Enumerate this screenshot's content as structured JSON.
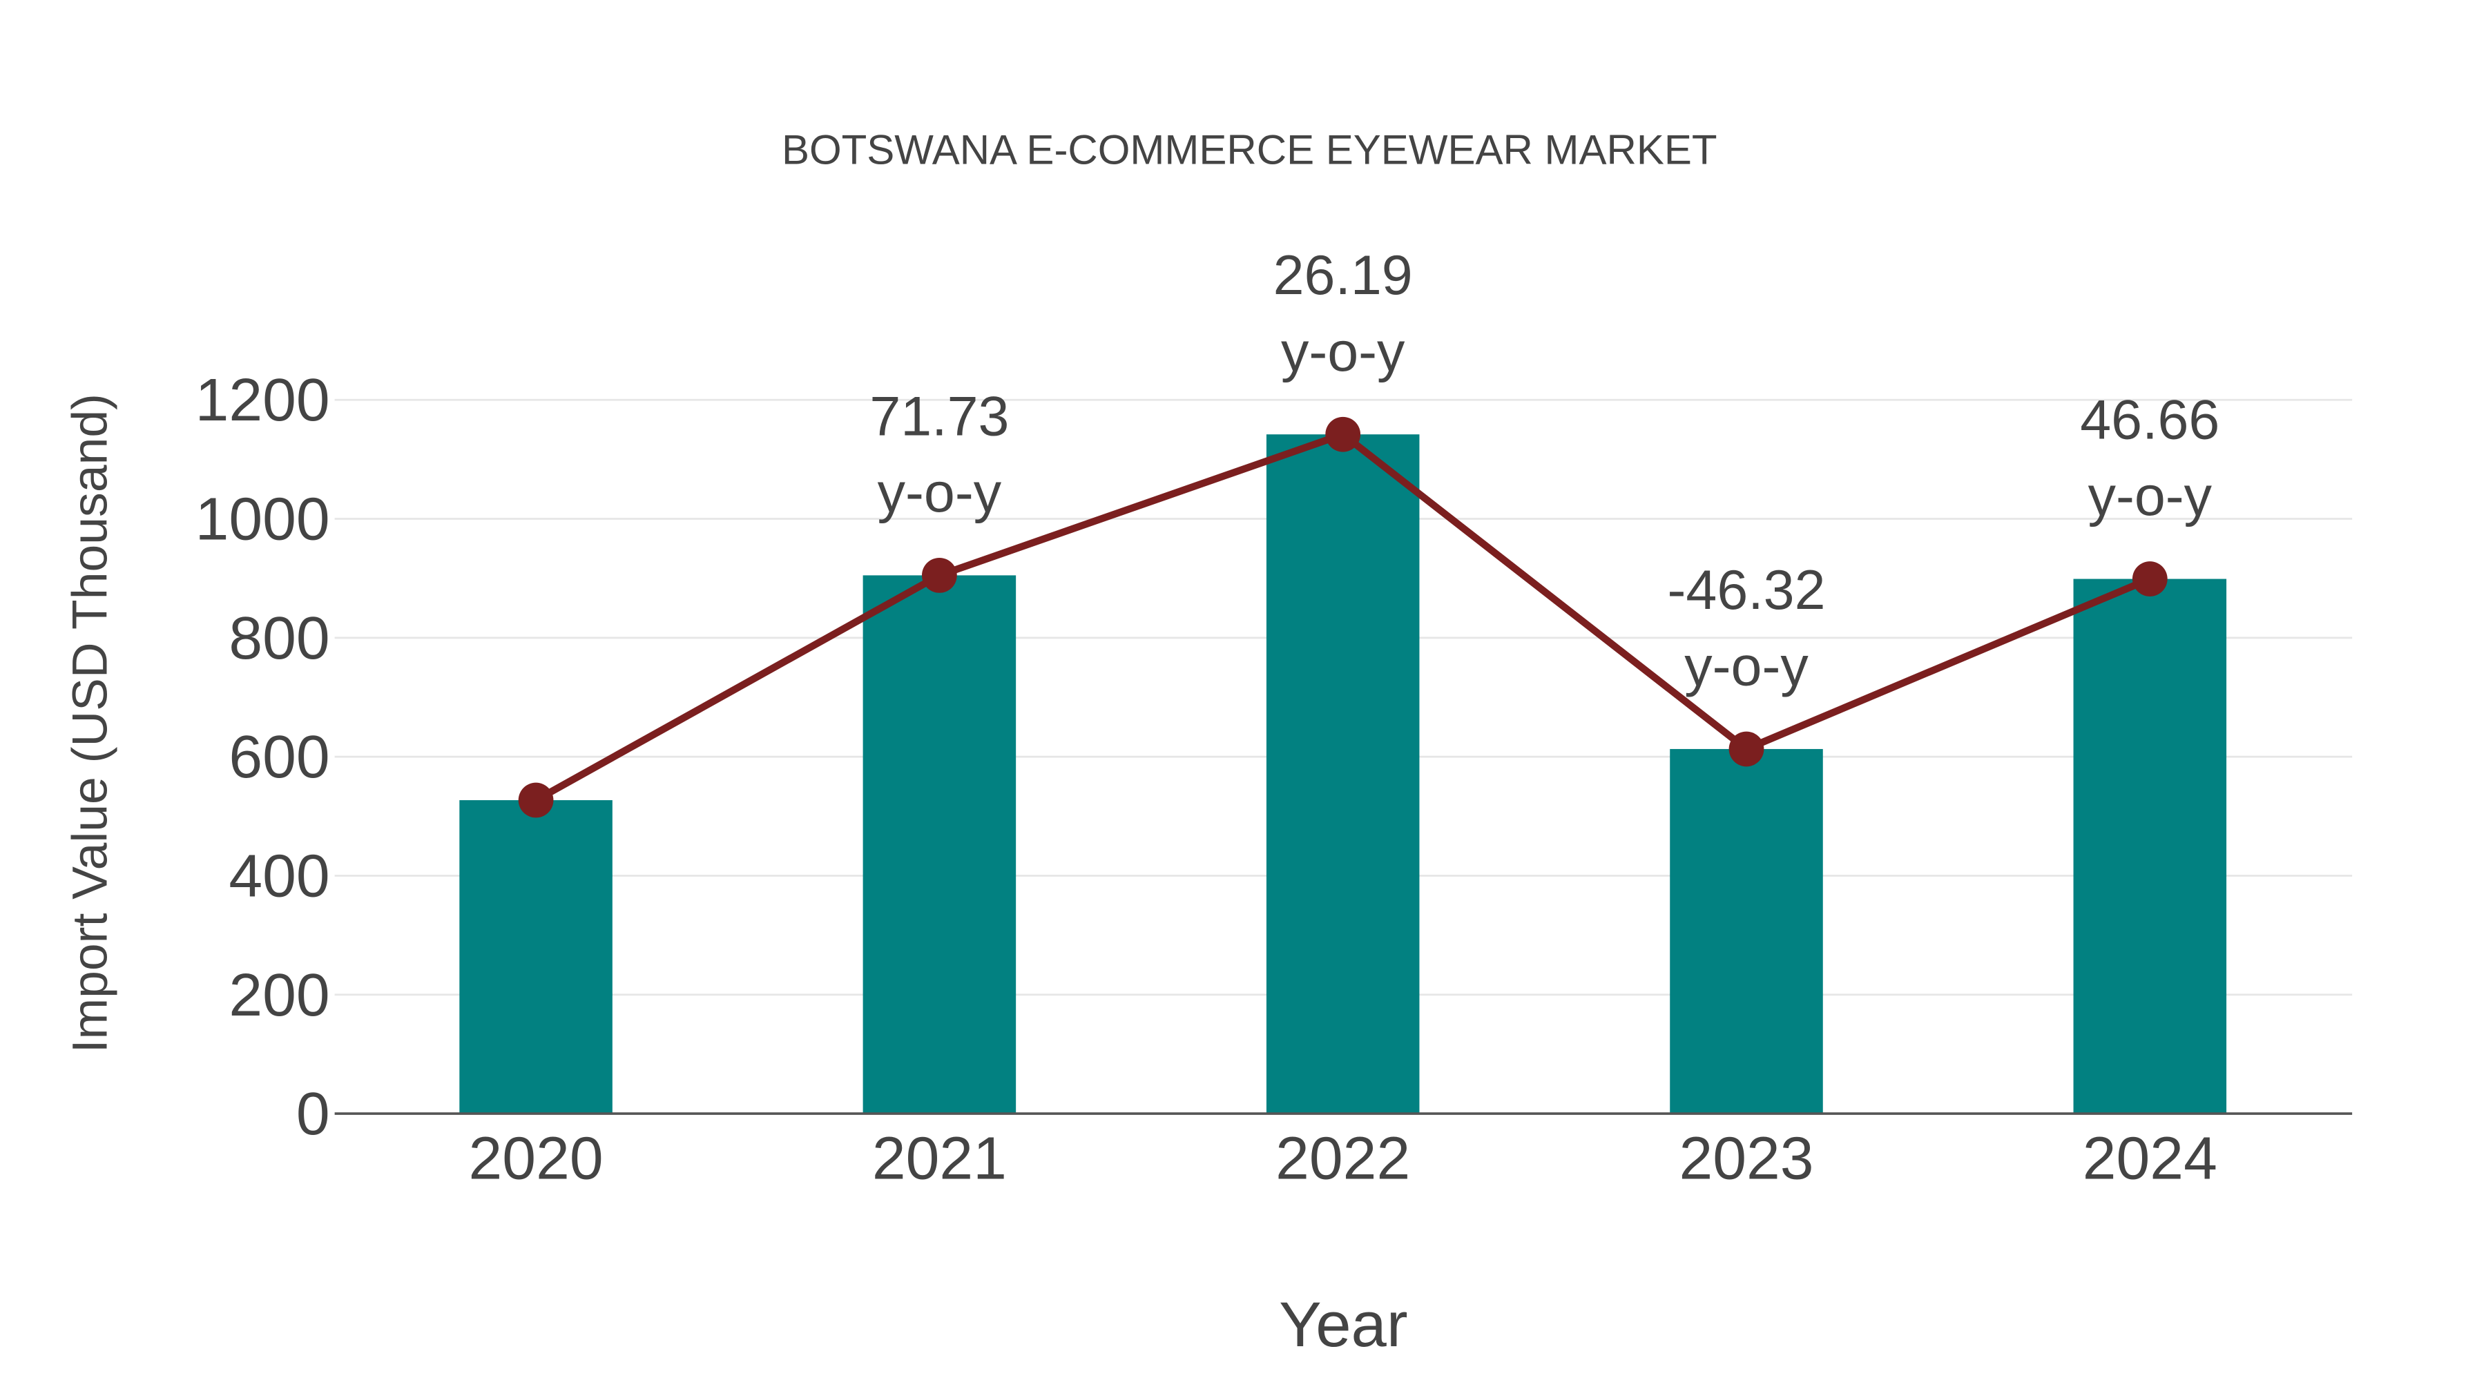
{
  "title": "BOTSWANA E-COMMERCE EYEWEAR MARKET",
  "colors": {
    "bar": "#028181",
    "line": "#7B1F1F",
    "text": "#444444",
    "grid": "#e6e6e6",
    "axis": "#555555",
    "background": "#ffffff"
  },
  "chart_data": {
    "type": "bar",
    "title": "BOTSWANA E-COMMERCE EYEWEAR MARKET",
    "xlabel": "Year",
    "ylabel": "Import Value (USD Thousand)",
    "categories": [
      "2020",
      "2021",
      "2022",
      "2023",
      "2024"
    ],
    "series": [
      {
        "name": "Import Value (bar)",
        "type": "bar",
        "values": [
          527,
          905,
          1142,
          613,
          899
        ]
      },
      {
        "name": "Import Value (line)",
        "type": "line",
        "values": [
          527,
          905,
          1142,
          613,
          899
        ]
      }
    ],
    "annotations": [
      {
        "category": "2021",
        "value": "71.73",
        "suffix": "y-o-y"
      },
      {
        "category": "2022",
        "value": "26.19",
        "suffix": "y-o-y"
      },
      {
        "category": "2023",
        "value": "-46.32",
        "suffix": "y-o-y"
      },
      {
        "category": "2024",
        "value": "46.66",
        "suffix": "y-o-y"
      }
    ],
    "yticks": [
      "0",
      "200",
      "400",
      "600",
      "800",
      "1000",
      "1200"
    ],
    "ylim": [
      0,
      1200
    ],
    "grid": true,
    "legend": "none"
  }
}
